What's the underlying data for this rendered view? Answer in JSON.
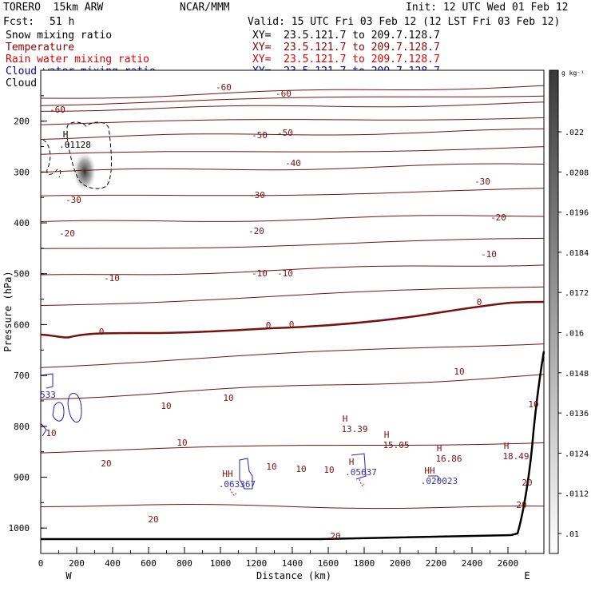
{
  "header": {
    "model": "TORERO  15km ARW",
    "center": "NCAR/MMM",
    "init": "Init: 12 UTC Wed 01 Feb 12",
    "fcst_label": "Fcst:",
    "fcst_value": "51 h",
    "valid": "Valid: 15 UTC Fri 03 Feb 12 (12 LST Fri 03 Feb 12)"
  },
  "fields": [
    {
      "name": "Snow mixing ratio",
      "color": "#000000"
    },
    {
      "name": "Temperature",
      "color": "#8b0000"
    },
    {
      "name": "Rain water mixing ratio",
      "color": "#dd0000"
    },
    {
      "name": "Cloud water mixing ratio",
      "color": "#0000aa"
    },
    {
      "name": "Cloud ice mixing ratio",
      "color": "#000000"
    }
  ],
  "xy_label": "XY=  23.5.121.7 to 209.7.128.7",
  "chart_data": {
    "type": "contour",
    "xlabel": "Distance (km)",
    "ylabel": "Pressure (hPa)",
    "xlim": [
      0,
      2800
    ],
    "ylim": [
      1050,
      100
    ],
    "xticks": [
      "0",
      "200",
      "400",
      "600",
      "800",
      "1000",
      "1200",
      "1400",
      "1600",
      "1800",
      "2000",
      "2200",
      "2400",
      "2600"
    ],
    "yticks": [
      "200",
      "300",
      "400",
      "500",
      "600",
      "700",
      "800",
      "900",
      "1000"
    ],
    "x_end_labels": {
      "left": "W",
      "right": "E"
    },
    "colorbar": {
      "unit": "g kg⁻¹",
      "ticks": [
        ".022",
        ".0208",
        ".0196",
        ".0184",
        ".0172",
        ".016",
        ".0148",
        ".0136",
        ".0124",
        ".0112",
        ".01"
      ]
    },
    "temperature_contours": [
      {
        "value": -60,
        "pressure": [
          155,
          130
        ]
      },
      {
        "value": -50,
        "pressure": [
          178,
          165
        ]
      },
      {
        "value": -40,
        "pressure": [
          233,
          218
        ]
      },
      {
        "value": -30,
        "pressure": [
          300,
          285
        ]
      },
      {
        "value": -20,
        "pressure": [
          400,
          385
        ]
      },
      {
        "value": -10,
        "pressure": [
          505,
          480
        ]
      },
      {
        "value": 0,
        "pressure": [
          618,
          570
        ]
      },
      {
        "value": 10,
        "pressure": [
          745,
          700
        ]
      },
      {
        "value": 20,
        "pressure": [
          955,
          960
        ]
      }
    ],
    "maxima_labels": [
      {
        "text": "H",
        "sub": ".01128"
      },
      {
        "text": "H",
        "sub": "13.39"
      },
      {
        "text": "H",
        "sub": "15.05"
      },
      {
        "text": "H",
        "sub": "16.86"
      },
      {
        "text": "H",
        "sub": "18.49"
      },
      {
        "text": "HH",
        "sub": ".063367"
      },
      {
        "text": "H",
        "sub": ".05637"
      },
      {
        "text": "HH",
        "sub": ".020023"
      }
    ],
    "contour_labels": [
      "-60",
      "-60",
      "-60",
      "-50",
      "-50",
      "-40",
      "-30",
      "-30",
      "-30",
      "-20",
      "-20",
      "-20",
      "-10",
      "-10",
      "-10",
      "-10",
      "0",
      "0",
      "0",
      "0",
      "10",
      "10",
      "10",
      "10",
      "10",
      "10",
      "10",
      "10",
      "10",
      "20",
      "20",
      "20",
      "20",
      "20",
      "533"
    ]
  }
}
